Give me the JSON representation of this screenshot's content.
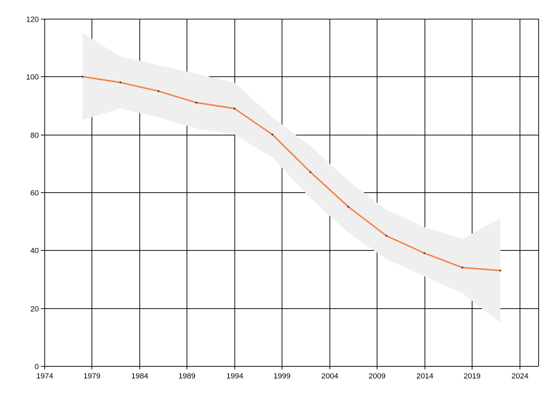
{
  "chart_data": {
    "type": "line",
    "title": "",
    "xlabel": "",
    "ylabel": "",
    "xlim": [
      1974,
      2026
    ],
    "ylim": [
      0,
      120
    ],
    "x_ticks": [
      1974,
      1979,
      1984,
      1989,
      1994,
      1999,
      2004,
      2009,
      2014,
      2019,
      2024
    ],
    "y_ticks": [
      0,
      20,
      40,
      60,
      80,
      100,
      120
    ],
    "grid": true,
    "legend": "none",
    "series": [
      {
        "x": [
          1978,
          1982,
          1986,
          1990,
          1994,
          1998,
          2002,
          2006,
          2010,
          2014,
          2018,
          2022
        ],
        "values": [
          100,
          98,
          95,
          91,
          89,
          80,
          67,
          55,
          45,
          39,
          34,
          33
        ],
        "upper": [
          115,
          107,
          104,
          101,
          98,
          86,
          76,
          64,
          54,
          48,
          44,
          51
        ],
        "lower": [
          85,
          89,
          86,
          82,
          80,
          72,
          58,
          46,
          37,
          31,
          25,
          15
        ],
        "color": "#f47b3e",
        "band_color": "#efefef"
      }
    ]
  }
}
